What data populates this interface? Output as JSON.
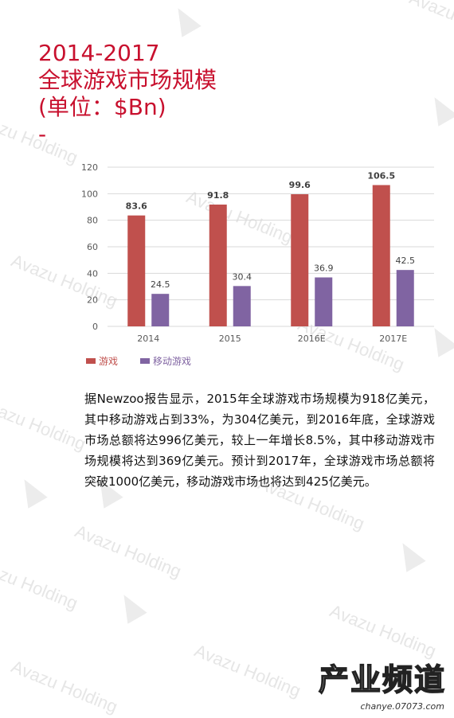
{
  "title": {
    "line1": "2014-2017",
    "line2": "全球游戏市场规模",
    "line3": "(单位：$Bn)",
    "line4": "-"
  },
  "watermark": "Avazu Holding",
  "chart_data": {
    "type": "bar",
    "categories": [
      "2014",
      "2015",
      "2016E",
      "2017E"
    ],
    "series": [
      {
        "name": "游戏",
        "values": [
          83.6,
          91.8,
          99.6,
          106.5
        ],
        "color": "#c0504d"
      },
      {
        "name": "移动游戏",
        "values": [
          24.5,
          30.4,
          36.9,
          42.5
        ],
        "color": "#8064a2"
      }
    ],
    "value_labels": [
      [
        "83.6",
        "91.8",
        "99.6",
        "106.5"
      ],
      [
        "24.5",
        "30.4",
        "36.9",
        "42.5"
      ]
    ],
    "yticks": [
      "0",
      "20",
      "40",
      "60",
      "80",
      "100",
      "120"
    ],
    "ylim": [
      0,
      120
    ],
    "grid": true,
    "legend_position": "bottom-left"
  },
  "body_text": "据Newzoo报告显示，2015年全球游戏市场规模为918亿美元，其中移动游戏占到33%，为304亿美元，到2016年底，全球游戏市场总额将达996亿美元，较上一年增长8.5%，其中移动游戏市场规模将达到369亿美元。预计到2017年，全球游戏市场总额将突破1000亿美元，移动游戏市场也将达到425亿美元。",
  "brand": {
    "name": "产业频道",
    "url": "chanye.07073.com"
  }
}
